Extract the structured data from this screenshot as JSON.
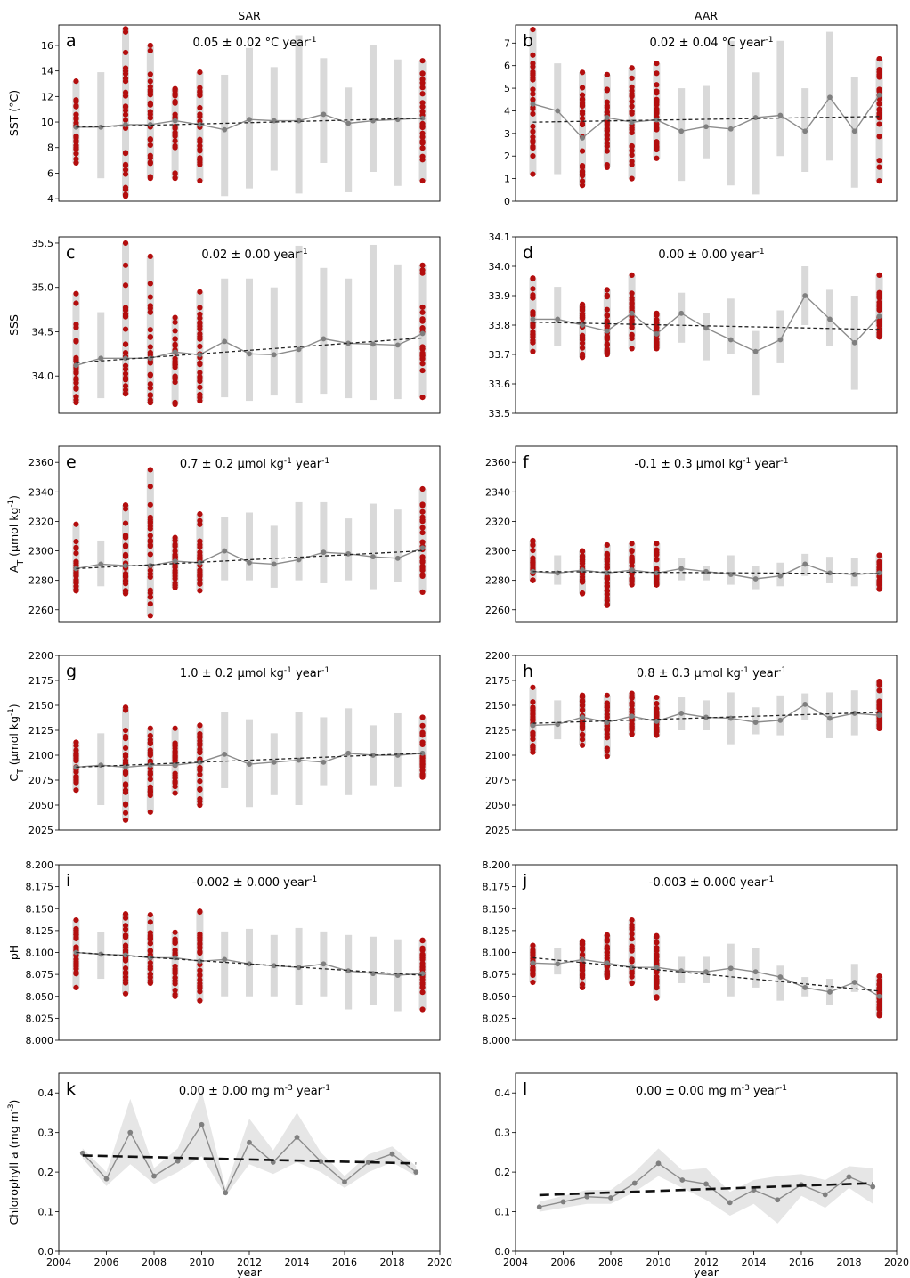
{
  "columns": [
    "SAR",
    "AAR"
  ],
  "years_xlabel": "year",
  "chart_data": [
    {
      "id": "a",
      "type": "scatter",
      "letter": "a",
      "col": 0,
      "row": 0,
      "annotation": "0.05 ± 0.02 °C year⁻¹",
      "ylabel": "SST (°C)",
      "ylim": [
        3.8,
        17.6
      ],
      "yticks": [
        4,
        6,
        8,
        10,
        12,
        14,
        16
      ],
      "x": [
        2005,
        2006,
        2007,
        2008,
        2009,
        2010,
        2011,
        2012,
        2013,
        2014,
        2015,
        2016,
        2017,
        2018,
        2019
      ],
      "mean": [
        9.6,
        9.6,
        9.8,
        9.8,
        10.1,
        9.8,
        9.4,
        10.2,
        10.1,
        10.1,
        10.6,
        9.9,
        10.1,
        10.2,
        10.3
      ],
      "range_low": [
        6.8,
        5.6,
        4.2,
        5.6,
        5.6,
        5.4,
        4.2,
        4.8,
        6.2,
        4.4,
        6.8,
        4.5,
        6.1,
        5.0,
        5.4
      ],
      "range_high": [
        13.2,
        13.9,
        17.3,
        16.0,
        12.6,
        13.9,
        13.7,
        15.8,
        14.3,
        16.8,
        15.0,
        12.7,
        16.0,
        14.9,
        14.8
      ],
      "observed_years": [
        2005,
        2007,
        2008,
        2009,
        2010,
        2019
      ],
      "trend": {
        "x": [
          2005,
          2019
        ],
        "y": [
          9.6,
          10.3
        ]
      }
    },
    {
      "id": "b",
      "type": "scatter",
      "letter": "b",
      "col": 1,
      "row": 0,
      "annotation": "0.02 ± 0.04 °C year⁻¹",
      "ylabel": "",
      "ylim": [
        0,
        7.8
      ],
      "yticks": [
        0,
        1,
        2,
        3,
        4,
        5,
        6,
        7
      ],
      "x": [
        2005,
        2006,
        2007,
        2008,
        2009,
        2010,
        2011,
        2012,
        2013,
        2014,
        2015,
        2016,
        2017,
        2018,
        2019
      ],
      "mean": [
        4.3,
        4.0,
        2.8,
        3.7,
        3.5,
        3.6,
        3.1,
        3.3,
        3.2,
        3.7,
        3.8,
        3.1,
        4.6,
        3.1,
        4.7
      ],
      "range_low": [
        1.2,
        1.2,
        0.7,
        1.5,
        1.0,
        1.9,
        0.9,
        1.9,
        0.7,
        0.3,
        2.0,
        1.3,
        1.8,
        0.6,
        0.9
      ],
      "range_high": [
        7.6,
        6.1,
        5.7,
        5.6,
        5.9,
        6.1,
        5.0,
        5.1,
        7.1,
        5.7,
        7.1,
        5.0,
        7.5,
        5.5,
        6.3
      ],
      "observed_years": [
        2005,
        2007,
        2008,
        2009,
        2010,
        2019
      ],
      "trend": {
        "x": [
          2005,
          2019
        ],
        "y": [
          3.5,
          3.75
        ]
      }
    },
    {
      "id": "c",
      "type": "scatter",
      "letter": "c",
      "col": 0,
      "row": 1,
      "annotation": "0.02 ± 0.00 year⁻¹",
      "ylabel": "SSS",
      "ylim": [
        33.58,
        35.57
      ],
      "yticks": [
        34.0,
        34.5,
        35.0,
        35.5
      ],
      "x": [
        2005,
        2006,
        2007,
        2008,
        2009,
        2010,
        2011,
        2012,
        2013,
        2014,
        2015,
        2016,
        2017,
        2018,
        2019
      ],
      "mean": [
        34.12,
        34.2,
        34.2,
        34.2,
        34.27,
        34.24,
        34.39,
        34.25,
        34.24,
        34.3,
        34.42,
        34.37,
        34.36,
        34.35,
        34.48
      ],
      "range_low": [
        33.7,
        33.75,
        33.8,
        33.7,
        33.68,
        33.72,
        33.76,
        33.72,
        33.78,
        33.7,
        33.8,
        33.75,
        33.73,
        33.74,
        33.76
      ],
      "range_high": [
        34.93,
        34.72,
        35.5,
        35.35,
        34.66,
        34.95,
        35.1,
        35.1,
        35.0,
        35.47,
        35.22,
        35.1,
        35.48,
        35.26,
        35.25
      ],
      "observed_years": [
        2005,
        2007,
        2008,
        2009,
        2010,
        2019
      ],
      "trend": {
        "x": [
          2005,
          2019
        ],
        "y": [
          34.15,
          34.43
        ]
      }
    },
    {
      "id": "d",
      "type": "scatter",
      "letter": "d",
      "col": 1,
      "row": 1,
      "annotation": "0.00 ± 0.00 year⁻¹",
      "ylabel": "",
      "ylim": [
        33.5,
        34.1
      ],
      "yticks": [
        33.5,
        33.6,
        33.7,
        33.8,
        33.9,
        34.0,
        34.1
      ],
      "x": [
        2005,
        2006,
        2007,
        2008,
        2009,
        2010,
        2011,
        2012,
        2013,
        2014,
        2015,
        2016,
        2017,
        2018,
        2019
      ],
      "mean": [
        33.82,
        33.82,
        33.8,
        33.78,
        33.84,
        33.77,
        33.84,
        33.79,
        33.75,
        33.71,
        33.75,
        33.9,
        33.82,
        33.74,
        33.83
      ],
      "range_low": [
        33.71,
        33.73,
        33.69,
        33.7,
        33.72,
        33.72,
        33.74,
        33.68,
        33.7,
        33.56,
        33.67,
        33.8,
        33.73,
        33.58,
        33.76
      ],
      "range_high": [
        33.96,
        33.93,
        33.87,
        33.92,
        33.97,
        33.84,
        33.91,
        33.84,
        33.89,
        33.78,
        33.85,
        34.0,
        33.92,
        33.9,
        33.97
      ],
      "observed_years": [
        2005,
        2007,
        2008,
        2009,
        2010,
        2019
      ],
      "trend": {
        "x": [
          2005,
          2019
        ],
        "y": [
          33.81,
          33.785
        ]
      }
    },
    {
      "id": "e",
      "type": "scatter",
      "letter": "e",
      "col": 0,
      "row": 2,
      "annotation": "0.7 ± 0.2 μmol kg⁻¹ year⁻¹",
      "ylabel": "A_T (μmol kg⁻¹)",
      "ylim": [
        2252,
        2371
      ],
      "yticks": [
        2260,
        2280,
        2300,
        2320,
        2340,
        2360
      ],
      "x": [
        2005,
        2006,
        2007,
        2008,
        2009,
        2010,
        2011,
        2012,
        2013,
        2014,
        2015,
        2016,
        2017,
        2018,
        2019
      ],
      "mean": [
        2288,
        2291,
        2290,
        2290,
        2293,
        2292,
        2300,
        2292,
        2291,
        2294,
        2299,
        2298,
        2296,
        2295,
        2302
      ],
      "range_low": [
        2273,
        2276,
        2271,
        2256,
        2275,
        2273,
        2280,
        2280,
        2275,
        2280,
        2278,
        2280,
        2274,
        2279,
        2272
      ],
      "range_high": [
        2318,
        2307,
        2331,
        2355,
        2309,
        2325,
        2323,
        2326,
        2317,
        2333,
        2333,
        2322,
        2332,
        2328,
        2342
      ],
      "observed_years": [
        2005,
        2007,
        2008,
        2009,
        2010,
        2019
      ],
      "trend": {
        "x": [
          2005,
          2019
        ],
        "y": [
          2288,
          2300
        ]
      }
    },
    {
      "id": "f",
      "type": "scatter",
      "letter": "f",
      "col": 1,
      "row": 2,
      "annotation": "-0.1 ± 0.3 μmol kg⁻¹ year⁻¹",
      "ylabel": "",
      "ylim": [
        2252,
        2371
      ],
      "yticks": [
        2260,
        2280,
        2300,
        2320,
        2340,
        2360
      ],
      "x": [
        2005,
        2006,
        2007,
        2008,
        2009,
        2010,
        2011,
        2012,
        2013,
        2014,
        2015,
        2016,
        2017,
        2018,
        2019
      ],
      "mean": [
        2286,
        2285,
        2287,
        2285,
        2287,
        2285,
        2288,
        2286,
        2284,
        2281,
        2283,
        2291,
        2285,
        2284,
        2285
      ],
      "range_low": [
        2280,
        2277,
        2271,
        2263,
        2277,
        2277,
        2280,
        2280,
        2277,
        2274,
        2276,
        2283,
        2278,
        2276,
        2274
      ],
      "range_high": [
        2307,
        2297,
        2300,
        2304,
        2305,
        2305,
        2295,
        2290,
        2297,
        2290,
        2292,
        2298,
        2296,
        2295,
        2297
      ],
      "observed_years": [
        2005,
        2007,
        2008,
        2009,
        2010,
        2019
      ],
      "trend": {
        "x": [
          2005,
          2019
        ],
        "y": [
          2286,
          2284.5
        ]
      }
    },
    {
      "id": "g",
      "type": "scatter",
      "letter": "g",
      "col": 0,
      "row": 3,
      "annotation": "1.0 ± 0.2 μmol kg⁻¹ year⁻¹",
      "ylabel": "C_T (μmol kg⁻¹)",
      "ylim": [
        2025,
        2200
      ],
      "yticks": [
        2025,
        2050,
        2075,
        2100,
        2125,
        2150,
        2175,
        2200
      ],
      "x": [
        2005,
        2006,
        2007,
        2008,
        2009,
        2010,
        2011,
        2012,
        2013,
        2014,
        2015,
        2016,
        2017,
        2018,
        2019
      ],
      "mean": [
        2088,
        2090,
        2088,
        2090,
        2090,
        2093,
        2101,
        2091,
        2093,
        2095,
        2093,
        2102,
        2100,
        2100,
        2102
      ],
      "range_low": [
        2065,
        2050,
        2035,
        2043,
        2062,
        2050,
        2067,
        2048,
        2060,
        2050,
        2070,
        2060,
        2070,
        2068,
        2078
      ],
      "range_high": [
        2113,
        2122,
        2148,
        2127,
        2127,
        2130,
        2143,
        2136,
        2122,
        2143,
        2138,
        2147,
        2130,
        2142,
        2138
      ],
      "observed_years": [
        2005,
        2007,
        2008,
        2009,
        2010,
        2019
      ],
      "trend": {
        "x": [
          2005,
          2019
        ],
        "y": [
          2088,
          2102
        ]
      }
    },
    {
      "id": "h",
      "type": "scatter",
      "letter": "h",
      "col": 1,
      "row": 3,
      "annotation": "0.8 ± 0.3 μmol kg⁻¹ year⁻¹",
      "ylabel": "",
      "ylim": [
        2025,
        2200
      ],
      "yticks": [
        2025,
        2050,
        2075,
        2100,
        2125,
        2150,
        2175,
        2200
      ],
      "x": [
        2005,
        2006,
        2007,
        2008,
        2009,
        2010,
        2011,
        2012,
        2013,
        2014,
        2015,
        2016,
        2017,
        2018,
        2019
      ],
      "mean": [
        2130,
        2131,
        2138,
        2133,
        2139,
        2134,
        2142,
        2138,
        2137,
        2133,
        2135,
        2151,
        2137,
        2142,
        2140
      ],
      "range_low": [
        2103,
        2116,
        2110,
        2099,
        2121,
        2120,
        2125,
        2125,
        2111,
        2121,
        2120,
        2135,
        2117,
        2120,
        2127
      ],
      "range_high": [
        2168,
        2155,
        2160,
        2160,
        2162,
        2158,
        2158,
        2155,
        2163,
        2148,
        2160,
        2162,
        2163,
        2165,
        2174
      ],
      "observed_years": [
        2005,
        2007,
        2008,
        2009,
        2010,
        2019
      ],
      "trend": {
        "x": [
          2005,
          2019
        ],
        "y": [
          2132,
          2143
        ]
      }
    },
    {
      "id": "i",
      "type": "scatter",
      "letter": "i",
      "col": 0,
      "row": 4,
      "annotation": "-0.002 ± 0.000 year⁻¹",
      "ylabel": "pH",
      "ylim": [
        8.0,
        8.2
      ],
      "yticks": [
        8.0,
        8.025,
        8.05,
        8.075,
        8.1,
        8.125,
        8.15,
        8.175,
        8.2
      ],
      "x": [
        2005,
        2006,
        2007,
        2008,
        2009,
        2010,
        2011,
        2012,
        2013,
        2014,
        2015,
        2016,
        2017,
        2018,
        2019
      ],
      "mean": [
        8.1,
        8.098,
        8.097,
        8.094,
        8.094,
        8.09,
        8.092,
        8.087,
        8.085,
        8.083,
        8.087,
        8.079,
        8.076,
        8.074,
        8.076
      ],
      "range_low": [
        8.06,
        8.07,
        8.053,
        8.065,
        8.05,
        8.045,
        8.05,
        8.05,
        8.05,
        8.04,
        8.05,
        8.035,
        8.04,
        8.033,
        8.035
      ],
      "range_high": [
        8.137,
        8.123,
        8.144,
        8.143,
        8.123,
        8.147,
        8.124,
        8.127,
        8.12,
        8.128,
        8.124,
        8.12,
        8.118,
        8.115,
        8.114
      ],
      "observed_years": [
        2005,
        2007,
        2008,
        2009,
        2010,
        2019
      ],
      "trend": {
        "x": [
          2005,
          2019
        ],
        "y": [
          8.1,
          8.074
        ]
      }
    },
    {
      "id": "j",
      "type": "scatter",
      "letter": "j",
      "col": 1,
      "row": 4,
      "annotation": "-0.003 ± 0.000 year⁻¹",
      "ylabel": "",
      "ylim": [
        8.0,
        8.2
      ],
      "yticks": [
        8.0,
        8.025,
        8.05,
        8.075,
        8.1,
        8.125,
        8.15,
        8.175,
        8.2
      ],
      "x": [
        2005,
        2006,
        2007,
        2008,
        2009,
        2010,
        2011,
        2012,
        2013,
        2014,
        2015,
        2016,
        2017,
        2018,
        2019
      ],
      "mean": [
        8.088,
        8.087,
        8.092,
        8.088,
        8.083,
        8.083,
        8.079,
        8.078,
        8.082,
        8.078,
        8.072,
        8.06,
        8.055,
        8.066,
        8.05
      ],
      "range_low": [
        8.066,
        8.075,
        8.06,
        8.072,
        8.065,
        8.048,
        8.065,
        8.065,
        8.05,
        8.06,
        8.045,
        8.05,
        8.04,
        8.055,
        8.028
      ],
      "range_high": [
        8.108,
        8.105,
        8.113,
        8.12,
        8.137,
        8.119,
        8.095,
        8.095,
        8.11,
        8.105,
        8.085,
        8.072,
        8.07,
        8.087,
        8.073
      ],
      "observed_years": [
        2005,
        2007,
        2008,
        2009,
        2010,
        2019
      ],
      "trend": {
        "x": [
          2005,
          2019
        ],
        "y": [
          8.094,
          8.056
        ]
      }
    },
    {
      "id": "k",
      "type": "line",
      "letter": "k",
      "col": 0,
      "row": 5,
      "annotation": "0.00 ± 0.00 mg m⁻³ year⁻¹",
      "ylabel": "Chlorophyll a (mg m⁻³)",
      "ylim": [
        0.0,
        0.45
      ],
      "yticks": [
        0.0,
        0.1,
        0.2,
        0.3,
        0.4
      ],
      "x": [
        2005,
        2006,
        2007,
        2008,
        2009,
        2010,
        2011,
        2012,
        2013,
        2014,
        2015,
        2016,
        2017,
        2018,
        2019
      ],
      "mean": [
        0.248,
        0.183,
        0.3,
        0.19,
        0.228,
        0.32,
        0.148,
        0.275,
        0.225,
        0.288,
        0.227,
        0.175,
        0.225,
        0.246,
        0.2
      ],
      "band_low": [
        0.235,
        0.165,
        0.22,
        0.17,
        0.2,
        0.24,
        0.14,
        0.22,
        0.195,
        0.225,
        0.2,
        0.16,
        0.2,
        0.225,
        0.19
      ],
      "band_high": [
        0.26,
        0.2,
        0.385,
        0.21,
        0.26,
        0.405,
        0.16,
        0.335,
        0.255,
        0.35,
        0.25,
        0.19,
        0.245,
        0.265,
        0.215
      ],
      "trend": {
        "x": [
          2005,
          2019
        ],
        "y": [
          0.242,
          0.222
        ]
      },
      "xticks": [
        2004,
        2006,
        2008,
        2010,
        2012,
        2014,
        2016,
        2018,
        2020
      ]
    },
    {
      "id": "l",
      "type": "line",
      "letter": "l",
      "col": 1,
      "row": 5,
      "annotation": "0.00 ± 0.00 mg m⁻³ year⁻¹",
      "ylabel": "",
      "ylim": [
        0.0,
        0.45
      ],
      "yticks": [
        0.0,
        0.1,
        0.2,
        0.3,
        0.4
      ],
      "x": [
        2005,
        2006,
        2007,
        2008,
        2009,
        2010,
        2011,
        2012,
        2013,
        2014,
        2015,
        2016,
        2017,
        2018,
        2019
      ],
      "mean": [
        0.112,
        0.125,
        0.138,
        0.135,
        0.172,
        0.222,
        0.18,
        0.17,
        0.123,
        0.155,
        0.13,
        0.168,
        0.143,
        0.188,
        0.163
      ],
      "band_low": [
        0.1,
        0.11,
        0.12,
        0.12,
        0.15,
        0.19,
        0.16,
        0.13,
        0.09,
        0.12,
        0.07,
        0.14,
        0.11,
        0.16,
        0.12
      ],
      "band_high": [
        0.125,
        0.14,
        0.155,
        0.155,
        0.2,
        0.26,
        0.205,
        0.21,
        0.15,
        0.18,
        0.19,
        0.195,
        0.18,
        0.215,
        0.21
      ],
      "trend": {
        "x": [
          2005,
          2019
        ],
        "y": [
          0.142,
          0.172
        ]
      },
      "xticks": [
        2004,
        2006,
        2008,
        2010,
        2012,
        2014,
        2016,
        2018,
        2020
      ]
    }
  ]
}
